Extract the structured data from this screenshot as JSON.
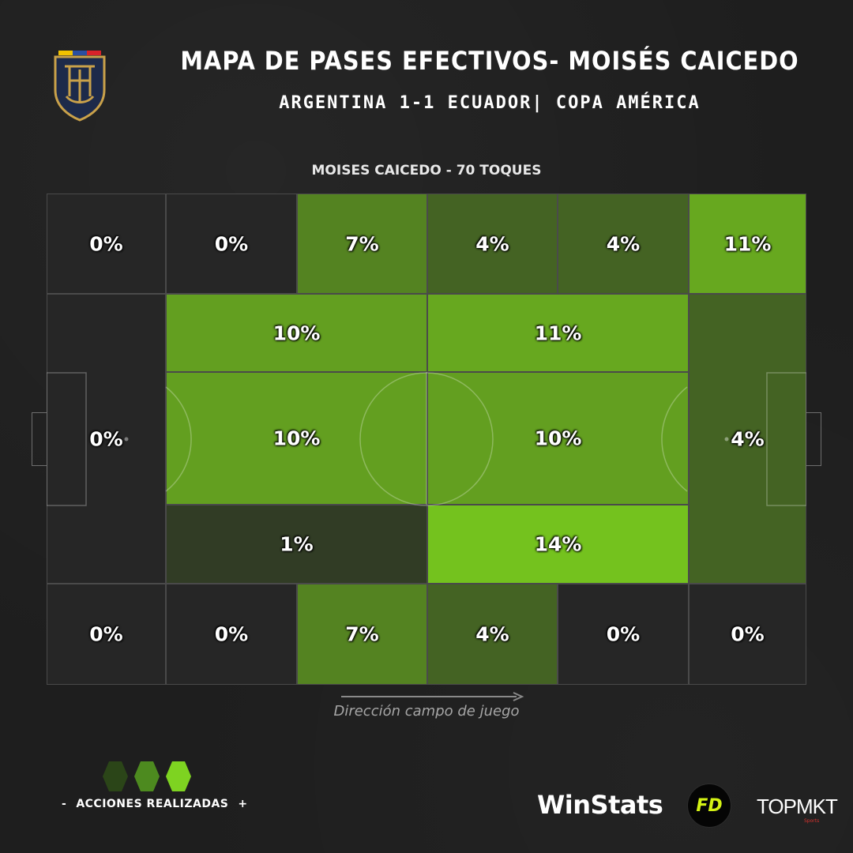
{
  "header": {
    "title": "MAPA DE PASES EFECTIVOS- MOISÉS CAICEDO",
    "subtitle": "ARGENTINA 1-1 ECUADOR|  COPA AMÉRICA",
    "player_label": "MOISES CAICEDO - 70 TOQUES"
  },
  "zones": [
    {
      "label": "0%",
      "value": 0,
      "row": "top"
    },
    {
      "label": "0%",
      "value": 0,
      "row": "top"
    },
    {
      "label": "7%",
      "value": 7,
      "row": "top"
    },
    {
      "label": "4%",
      "value": 4,
      "row": "top"
    },
    {
      "label": "4%",
      "value": 4,
      "row": "top"
    },
    {
      "label": "11%",
      "value": 11,
      "row": "top"
    },
    {
      "label": "0%",
      "value": 0,
      "row": "middle",
      "area": "own-box"
    },
    {
      "label": "10%",
      "value": 10,
      "row": "upper-middle"
    },
    {
      "label": "11%",
      "value": 11,
      "row": "upper-middle"
    },
    {
      "label": "10%",
      "value": 10,
      "row": "center"
    },
    {
      "label": "10%",
      "value": 10,
      "row": "center"
    },
    {
      "label": "1%",
      "value": 1,
      "row": "lower-middle"
    },
    {
      "label": "14%",
      "value": 14,
      "row": "lower-middle"
    },
    {
      "label": "4%",
      "value": 4,
      "row": "middle",
      "area": "opponent-box"
    },
    {
      "label": "0%",
      "value": 0,
      "row": "bottom"
    },
    {
      "label": "0%",
      "value": 0,
      "row": "bottom"
    },
    {
      "label": "7%",
      "value": 7,
      "row": "bottom"
    },
    {
      "label": "4%",
      "value": 4,
      "row": "bottom"
    },
    {
      "label": "0%",
      "value": 0,
      "row": "bottom"
    },
    {
      "label": "0%",
      "value": 0,
      "row": "bottom"
    }
  ],
  "direction_label": "Dirección campo de juego",
  "legend": {
    "minus": "-",
    "label": "ACCIONES REALIZADAS",
    "plus": "+",
    "colors": [
      "#2b4518",
      "#4d8a1f",
      "#7ed321"
    ]
  },
  "footer": {
    "winstats": "WinStats",
    "fd": "FD",
    "topmkt": "TOPMKT",
    "topmkt_sub": "Sports"
  },
  "colors": {
    "background": "#1e1e1e",
    "zone_empty": "#262626",
    "zone_max": "#74c21e",
    "grid_line": "#4a4a4a",
    "crest_gold": "#c9a14a",
    "crest_navy": "#1d2a4a"
  }
}
